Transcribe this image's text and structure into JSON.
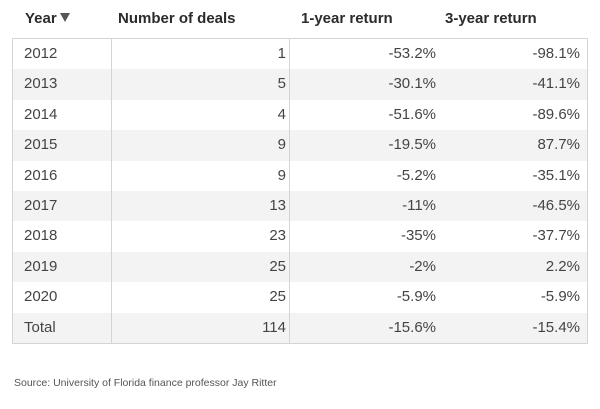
{
  "headers": {
    "year": "Year",
    "deals": "Number of deals",
    "return_1y": "1-year return",
    "return_3y": "3-year return"
  },
  "rows": [
    {
      "year": "2012",
      "deals": "1",
      "return_1y": "-53.2%",
      "return_3y": "-98.1%"
    },
    {
      "year": "2013",
      "deals": "5",
      "return_1y": "-30.1%",
      "return_3y": "-41.1%"
    },
    {
      "year": "2014",
      "deals": "4",
      "return_1y": "-51.6%",
      "return_3y": "-89.6%"
    },
    {
      "year": "2015",
      "deals": "9",
      "return_1y": "-19.5%",
      "return_3y": "87.7%"
    },
    {
      "year": "2016",
      "deals": "9",
      "return_1y": "-5.2%",
      "return_3y": "-35.1%"
    },
    {
      "year": "2017",
      "deals": "13",
      "return_1y": "-11%",
      "return_3y": "-46.5%"
    },
    {
      "year": "2018",
      "deals": "23",
      "return_1y": "-35%",
      "return_3y": "-37.7%"
    },
    {
      "year": "2019",
      "deals": "25",
      "return_1y": "-2%",
      "return_3y": "2.2%"
    },
    {
      "year": "2020",
      "deals": "25",
      "return_1y": "-5.9%",
      "return_3y": "-5.9%"
    },
    {
      "year": "Total",
      "deals": "114",
      "return_1y": "-15.6%",
      "return_3y": "-15.4%"
    }
  ],
  "source": "Source:  University of Florida finance professor Jay Ritter",
  "colors": {
    "row_stripe": "#f3f3f3",
    "border": "#d4d4d4",
    "text": "#444444"
  },
  "icons": {
    "sort": "sort-descending-icon"
  }
}
